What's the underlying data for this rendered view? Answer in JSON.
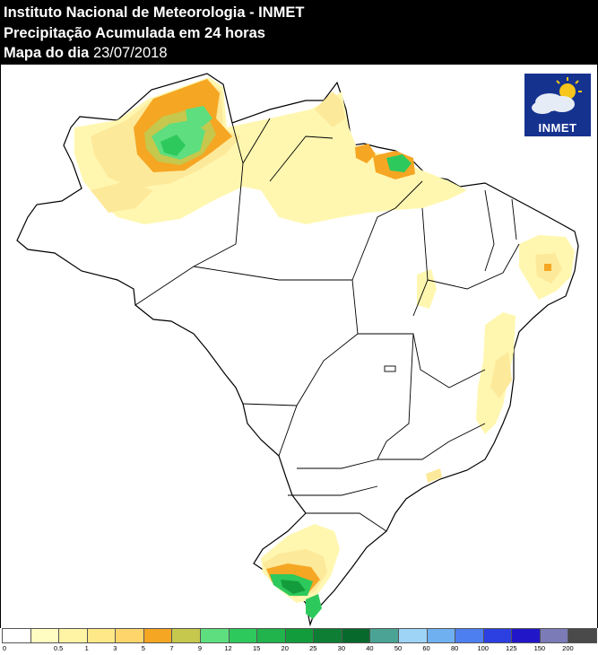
{
  "header": {
    "line1": "Instituto Nacional de Meteorologia - INMET",
    "line2": "Precipitação Acumulada em 24 horas",
    "line3_prefix": "Mapa do dia",
    "date": "23/07/2018"
  },
  "logo": {
    "text": "INMET",
    "icon": "sun-cloud-icon"
  },
  "legend": {
    "ticks": [
      "0",
      "0.5",
      "1",
      "3",
      "5",
      "7",
      "9",
      "12",
      "15",
      "20",
      "25",
      "30",
      "40",
      "50",
      "60",
      "80",
      "100",
      "125",
      "150",
      "200"
    ],
    "colors": [
      "#ffffff",
      "#fffdc2",
      "#fff3a4",
      "#ffe888",
      "#fdd56a",
      "#f5a623",
      "#c5c84c",
      "#5ede7e",
      "#2ec95c",
      "#21b34c",
      "#139c3c",
      "#0e7e34",
      "#08692c",
      "#4aa394",
      "#9ed4f5",
      "#6fb0f0",
      "#4d7ff0",
      "#2c3fe0",
      "#2216c9",
      "#7b7bb8",
      "#4a4a4a"
    ]
  },
  "colors": {
    "pale_yellow": "#fff7b0",
    "light_yellow": "#fde99a",
    "light_orange": "#fdd56a",
    "orange": "#f5a623",
    "olive": "#c5c84c",
    "light_green": "#5ede7e",
    "green": "#2ec95c",
    "dark_green": "#139c3c"
  }
}
